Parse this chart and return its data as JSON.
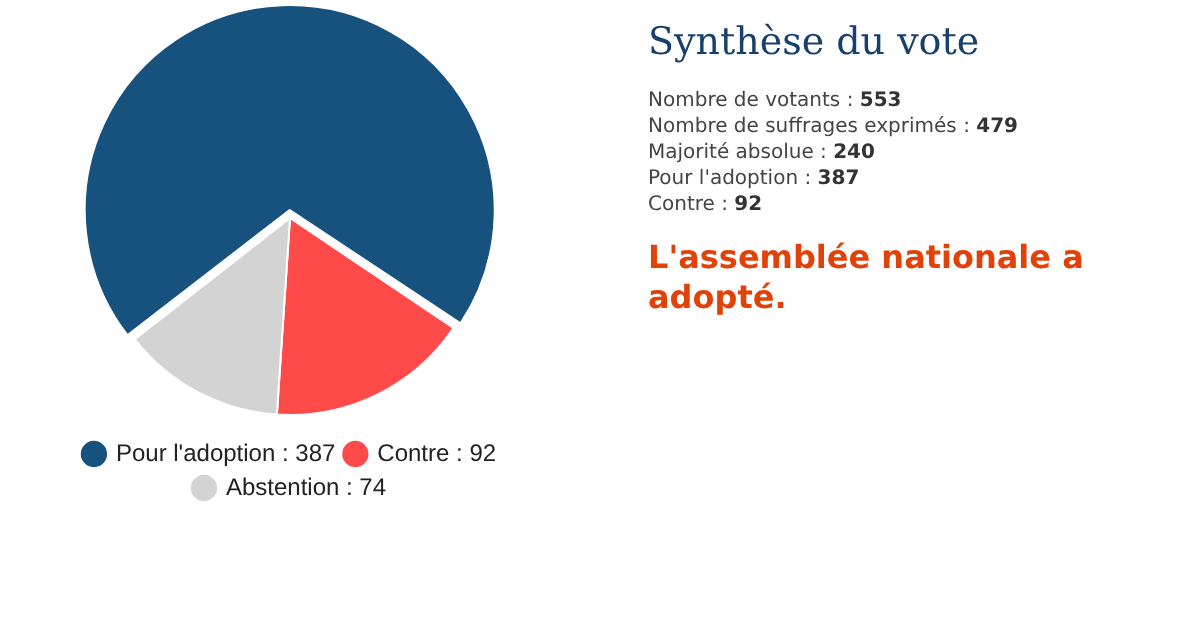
{
  "chart_data": {
    "type": "pie",
    "title": "Synthèse du vote",
    "categories": [
      "Pour l'adoption : 387",
      "Contre : 92",
      "Abstention : 74"
    ],
    "values": [
      387,
      92,
      74
    ],
    "colors": [
      "#17527e",
      "#ff4a4a",
      "#d3d3d3"
    ],
    "legend": "bottom",
    "annotations": [
      "Nombre de votants : 553",
      "Nombre de suffrages exprimés : 479",
      "Majorité absolue : 240",
      "Pour l'adoption : 387",
      "Contre : 92",
      "L'assemblée nationale a adopté."
    ]
  }
}
